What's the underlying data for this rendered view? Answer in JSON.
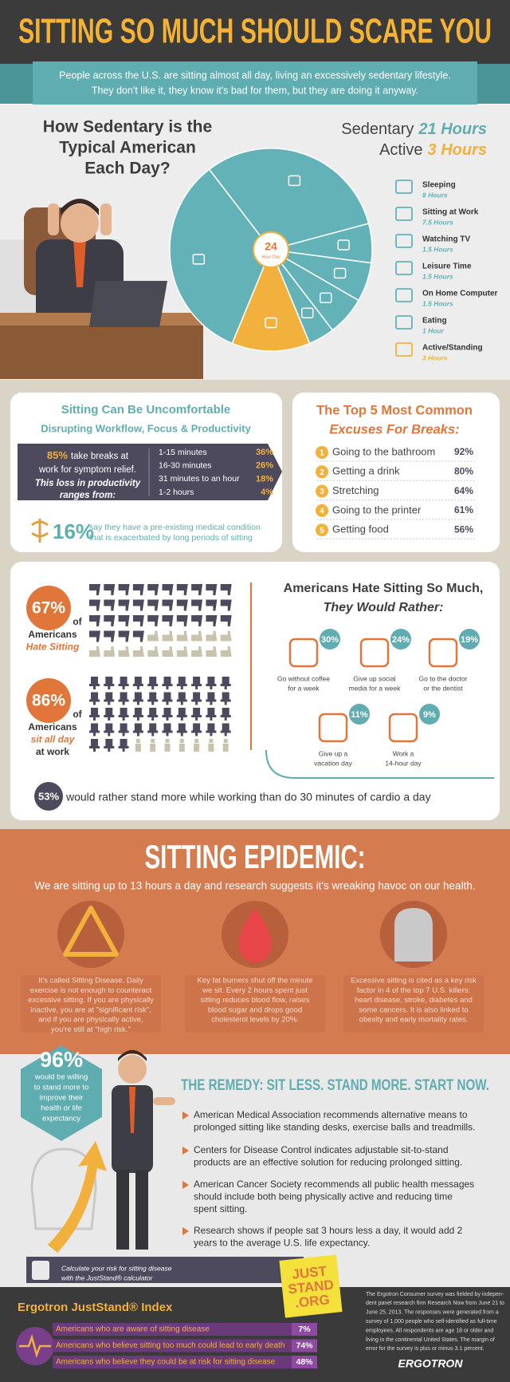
{
  "header": {
    "title": "SITTING SO MUCH SHOULD SCARE YOU",
    "intro": [
      "People across the U.S. are sitting almost all day, living an excessively sedentary lifestyle.",
      "They don't like it, they know it's bad for them, but they are doing it anyway."
    ]
  },
  "day": {
    "question": [
      "How Sedentary is the",
      "Typical American",
      "Each Day?"
    ],
    "sedentary": {
      "label": "Sedentary",
      "hours": "21 Hours"
    },
    "active": {
      "label": "Active",
      "hours": "3 Hours"
    },
    "clock": {
      "number": "24",
      "label": "Hour Day"
    },
    "activities": [
      {
        "name": "Sleeping",
        "hours": 8,
        "label": "8 Hours",
        "color": "#62b2b8"
      },
      {
        "name": "Sitting at Work",
        "hours": 7.5,
        "label": "7.5 Hours",
        "color": "#62b2b8"
      },
      {
        "name": "Watching TV",
        "hours": 1.5,
        "label": "1.5 Hours",
        "color": "#62b2b8"
      },
      {
        "name": "Leisure Time",
        "hours": 1.5,
        "label": "1.5 Hours",
        "color": "#62b2b8"
      },
      {
        "name": "On Home Computer",
        "hours": 1.5,
        "label": "1.5 Hours",
        "color": "#62b2b8"
      },
      {
        "name": "Eating",
        "hours": 1,
        "label": "1 Hour",
        "color": "#62b2b8"
      },
      {
        "name": "Active/Standing",
        "hours": 3,
        "label": "3 Hours",
        "color": "#f2b03c"
      }
    ]
  },
  "discomfort": {
    "title": "Sitting Can Be Uncomfortable",
    "subtitle": "Disrupting Workflow, Focus & Productivity",
    "breaks": {
      "percent": "85%",
      "text": [
        "take breaks at",
        "work for symptom relief."
      ],
      "note": [
        "This loss in productivity",
        "ranges from:"
      ]
    },
    "ranges": [
      {
        "label": "1-15 minutes",
        "percent": "36%"
      },
      {
        "label": "16-30 minutes",
        "percent": "26%"
      },
      {
        "label": "31 minutes to an hour",
        "percent": "18%"
      },
      {
        "label": "1-2 hours",
        "percent": "4%"
      }
    ],
    "condition": {
      "percent": "16%",
      "text": [
        "say they have a pre-existing medical condition",
        "that is exacerbated by long periods of sitting"
      ]
    }
  },
  "excuses": {
    "title": [
      "The Top 5 Most Common",
      "Excuses For Breaks:"
    ],
    "items": [
      {
        "number": "1",
        "text": "Going to the bathroom",
        "percent": "92%"
      },
      {
        "number": "2",
        "text": "Getting a drink",
        "percent": "80%"
      },
      {
        "number": "3",
        "text": "Stretching",
        "percent": "64%"
      },
      {
        "number": "4",
        "text": "Going to the printer",
        "percent": "61%"
      },
      {
        "number": "5",
        "text": "Getting food",
        "percent": "56%"
      }
    ]
  },
  "hate": {
    "stats": [
      {
        "percent": {
          "value": 67,
          "label": "67%"
        },
        "of": "of",
        "text": [
          "Americans",
          "Hate Sitting"
        ]
      },
      {
        "percent": {
          "value": 86,
          "label": "86%"
        },
        "of": "of",
        "text": [
          "Americans",
          "sit all day",
          "at work"
        ]
      }
    ],
    "title": [
      "Americans Hate Sitting So Much,",
      "They Would Rather:"
    ],
    "options": [
      {
        "percent": "30%",
        "text": [
          "Go without coffee",
          "for a week"
        ]
      },
      {
        "percent": "24%",
        "text": [
          "Give up social",
          "media for a week"
        ]
      },
      {
        "percent": "19%",
        "text": [
          "Go to the doctor",
          "or the dentist"
        ]
      },
      {
        "percent": "11%",
        "text": [
          "Give up a",
          "vacation day"
        ]
      },
      {
        "percent": "9%",
        "text": [
          "Work a",
          "14-hour day"
        ]
      }
    ],
    "stand": {
      "percent": "53%",
      "text": "would rather stand more while working than do 30 minutes of cardio a day"
    }
  },
  "epidemic": {
    "title": "SITTING EPIDEMIC:",
    "subtitle": "We are sitting up to 13 hours a day and research suggests it's wreaking havoc on our health.",
    "facts": [
      [
        "It's called Sitting Disease. Daily",
        "exercise is not enough to counteract",
        "excessive sitting. If you are physically",
        "inactive, you are at \"significant risk\",",
        "and if you are physically active,",
        "you're still at \"high risk.\""
      ],
      [
        "Key fat burners shut off the minute",
        "we sit. Every 2 hours spent just",
        "sitting reduces blood flow, raises",
        "blood sugar and drops good",
        "cholesterol levels by 20%."
      ],
      [
        "Excessive sitting is cited as a key risk",
        "factor in 4 of the top 7 U.S. killers:",
        "heart disease, stroke, diabetes and",
        "some cancers. It is also linked to",
        "obesity and early mortality rates."
      ]
    ]
  },
  "remedy": {
    "badge": {
      "percent": "96%",
      "text": [
        "would be willing",
        "to stand more to",
        "improve their",
        "health or life",
        "expectancy"
      ]
    },
    "title": "THE REMEDY: SIT LESS. STAND MORE. START NOW.",
    "points": [
      [
        "American Medical Association recommends alternative means to",
        "prolonged sitting like standing desks, exercise balls and treadmills."
      ],
      [
        "Centers for Disease Control indicates adjustable sit-to-stand",
        "products are an effective solution for reducing prolonged sitting."
      ],
      [
        "American Cancer Society recommends all public health messages",
        "should include both being physically active and reducing time",
        "spent sitting."
      ],
      [
        "Research shows if people sat 3 hours less a day, it would add 2",
        "years to the average U.S. life expectancy."
      ]
    ],
    "calculator": [
      "Calculate your risk for sitting disease",
      "with the JustStand® calculator"
    ],
    "site": [
      "JUST",
      "STAND",
      ".ORG"
    ]
  },
  "index": {
    "title": "Ergotron JustStand® Index",
    "rows": [
      {
        "text": "Americans who are aware of sitting disease",
        "percent": "7%"
      },
      {
        "text": "Americans who believe sitting too much could lead to early death",
        "percent": "74%"
      },
      {
        "text": "Americans who believe they could be at risk for sitting disease",
        "percent": "48%"
      }
    ],
    "footnote": [
      "The Ergotron Consumer survey was fielded by indepen-",
      "dent panel research firm Research Now from June 21 to",
      "June 25, 2013. The responses were generated from a",
      "survey of 1,000 people who self-identified as full-time",
      "employees. All respondents are age 18 or older and",
      "living in the continental United States. The margin of",
      "error for the survey is plus or minus 3.1 percent."
    ],
    "logo": "ERGOTRON"
  }
}
